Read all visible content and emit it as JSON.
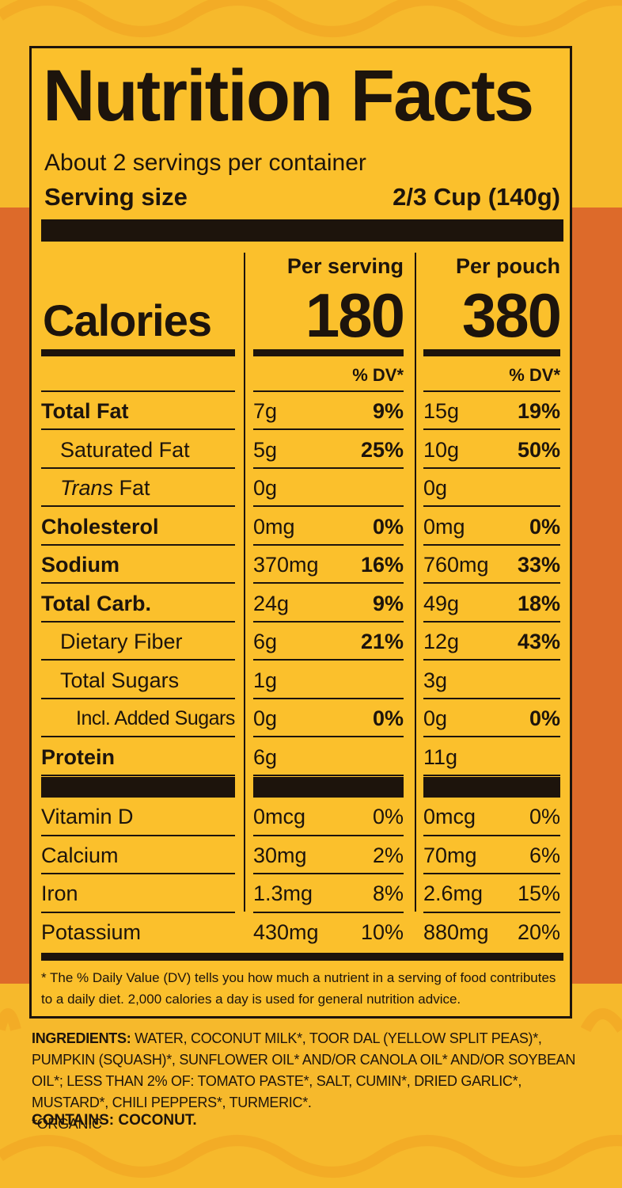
{
  "title": "Nutrition Facts",
  "servings_per_container": "About 2 servings per container",
  "serving_size_label": "Serving size",
  "serving_size_value": "2/3 Cup (140g)",
  "calories_label": "Calories",
  "columns": [
    {
      "header": "Per serving",
      "calories": "180",
      "dv_label": "% DV*"
    },
    {
      "header": "Per pouch",
      "calories": "380",
      "dv_label": "% DV*"
    }
  ],
  "nutrients": [
    {
      "name": "Total Fat",
      "amt1": "7g",
      "pct1": "9%",
      "amt2": "15g",
      "pct2": "19%"
    },
    {
      "name": "Saturated Fat",
      "amt1": "5g",
      "pct1": "25%",
      "amt2": "10g",
      "pct2": "50%"
    },
    {
      "name_italic": "Trans",
      "name_rest": " Fat",
      "amt1": "0g",
      "pct1": "",
      "amt2": "0g",
      "pct2": ""
    },
    {
      "name": "Cholesterol",
      "amt1": "0mg",
      "pct1": "0%",
      "amt2": "0mg",
      "pct2": "0%"
    },
    {
      "name": "Sodium",
      "amt1": "370mg",
      "pct1": "16%",
      "amt2": "760mg",
      "pct2": "33%"
    },
    {
      "name": "Total Carb.",
      "amt1": "24g",
      "pct1": "9%",
      "amt2": "49g",
      "pct2": "18%"
    },
    {
      "name": "Dietary Fiber",
      "amt1": "6g",
      "pct1": "21%",
      "amt2": "12g",
      "pct2": "43%"
    },
    {
      "name": "Total Sugars",
      "amt1": "1g",
      "pct1": "",
      "amt2": "3g",
      "pct2": ""
    },
    {
      "name": "Incl. Added Sugars",
      "amt1": "0g",
      "pct1": "0%",
      "amt2": "0g",
      "pct2": "0%"
    },
    {
      "name": "Protein",
      "amt1": "6g",
      "pct1": "",
      "amt2": "11g",
      "pct2": ""
    }
  ],
  "vitamins": [
    {
      "name": "Vitamin D",
      "amt1": "0mcg",
      "pct1": "0%",
      "amt2": "0mcg",
      "pct2": "0%"
    },
    {
      "name": "Calcium",
      "amt1": "30mg",
      "pct1": "2%",
      "amt2": "70mg",
      "pct2": "6%"
    },
    {
      "name": "Iron",
      "amt1": "1.3mg",
      "pct1": "8%",
      "amt2": "2.6mg",
      "pct2": "15%"
    },
    {
      "name": "Potassium",
      "amt1": "430mg",
      "pct1": "10%",
      "amt2": "880mg",
      "pct2": "20%"
    }
  ],
  "footnote": "* The % Daily Value (DV) tells you how much a nutrient in a serving of food contributes to a daily diet. 2,000 calories a day is used for general nutrition advice.",
  "ingredients_label": "INGREDIENTS:",
  "ingredients_text": " WATER, COCONUT MILK*, TOOR DAL (YELLOW SPLIT PEAS)*, PUMPKIN (SQUASH)*,  SUNFLOWER OIL* AND/OR CANOLA OIL* AND/OR SOYBEAN OIL*;  LESS THAN 2% OF: TOMATO PASTE*, SALT, CUMIN*, DRIED GARLIC*, MUSTARD*, CHILI PEPPERS*, TURMERIC*.",
  "organic_note": "*ORGANIC",
  "contains": "CONTAINS: COCONUT.",
  "colors": {
    "label_bg": "#fbc02c",
    "ink": "#1d140c",
    "package_orange": "#dd6a2a",
    "package_yellow": "#f6b92c"
  }
}
